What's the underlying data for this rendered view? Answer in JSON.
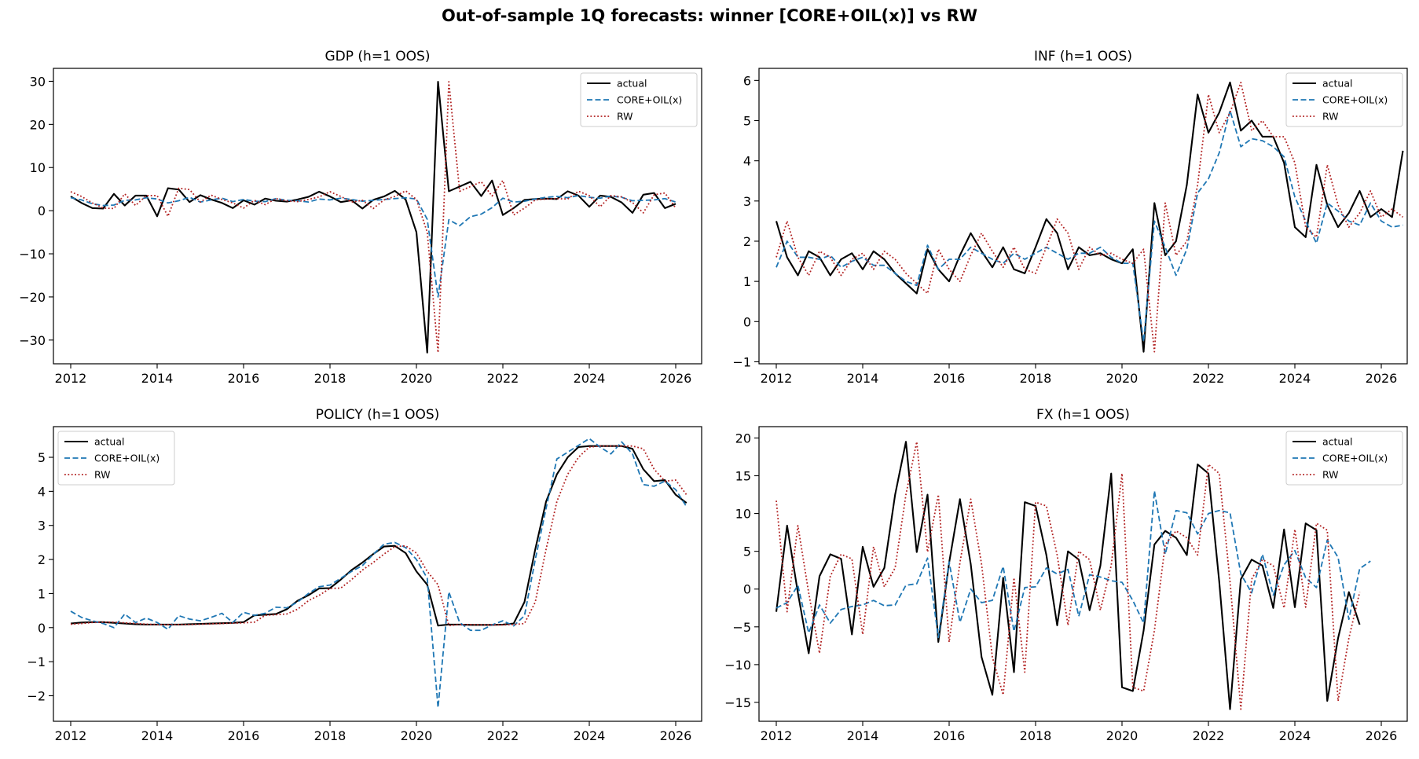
{
  "suptitle": "Out-of-sample 1Q forecasts: winner [CORE+OIL(x)] vs RW",
  "colors": {
    "actual": "#000000",
    "model": "#1f77b4",
    "rw": "#b22222"
  },
  "chart_data": [
    {
      "type": "line",
      "title": "GDP  (h=1 OOS)",
      "xlabel": "",
      "ylabel": "",
      "xlim": [
        2011.6,
        2026.6
      ],
      "ylim": [
        -35.5,
        33
      ],
      "xticks": [
        2012,
        2014,
        2016,
        2018,
        2020,
        2022,
        2024,
        2026
      ],
      "yticks": [
        -30,
        -20,
        -10,
        0,
        10,
        20,
        30
      ],
      "legend_position": "top-right",
      "grid": false,
      "x_start": 2012.0,
      "x_step": 0.25,
      "series": [
        {
          "name": "actual",
          "style": "solid",
          "color": "#000000",
          "values": [
            3.3,
            1.8,
            0.6,
            0.5,
            3.9,
            1.2,
            3.5,
            3.5,
            -1.3,
            5.2,
            4.9,
            2.0,
            3.6,
            2.6,
            1.8,
            0.6,
            2.4,
            1.4,
            2.8,
            2.3,
            2.1,
            2.6,
            3.2,
            4.4,
            3.3,
            2.0,
            2.4,
            0.5,
            2.5,
            3.3,
            4.6,
            2.6,
            -5.0,
            -32.9,
            29.9,
            4.5,
            5.6,
            6.7,
            3.4,
            7.0,
            -1.0,
            0.6,
            2.5,
            2.7,
            2.8,
            2.7,
            4.5,
            3.5,
            0.9,
            3.5,
            3.2,
            1.9,
            -0.5,
            3.7,
            4.1,
            0.6,
            1.6
          ]
        },
        {
          "name": "CORE+OIL(x)",
          "style": "dashed",
          "color": "#1f77b4",
          "values": [
            3.0,
            2.5,
            1.6,
            1.2,
            1.3,
            2.4,
            2.5,
            3.0,
            2.7,
            1.8,
            2.3,
            3.1,
            2.0,
            2.5,
            2.9,
            2.1,
            2.6,
            2.2,
            2.1,
            2.8,
            2.4,
            2.3,
            2.0,
            2.7,
            2.5,
            2.9,
            2.6,
            2.2,
            2.4,
            2.6,
            2.8,
            3.0,
            2.7,
            -2.0,
            -20.0,
            -2.1,
            -3.5,
            -1.4,
            -0.8,
            0.7,
            2.9,
            2.0,
            2.2,
            2.7,
            3.1,
            3.3,
            3.0,
            3.5,
            3.1,
            2.9,
            3.4,
            3.1,
            2.3,
            2.4,
            2.5,
            2.8,
            2.0
          ]
        },
        {
          "name": "RW",
          "style": "dotted",
          "color": "#b22222",
          "values": [
            4.4,
            3.3,
            1.8,
            0.6,
            0.5,
            3.9,
            1.2,
            3.5,
            3.5,
            -1.3,
            5.2,
            4.9,
            2.0,
            3.6,
            2.6,
            1.8,
            0.6,
            2.4,
            1.4,
            2.8,
            2.3,
            2.1,
            2.6,
            3.2,
            4.4,
            3.3,
            2.0,
            2.4,
            0.5,
            2.5,
            3.3,
            4.6,
            2.6,
            -5.0,
            -32.9,
            29.9,
            4.5,
            5.6,
            6.7,
            3.4,
            7.0,
            -1.0,
            0.6,
            2.5,
            2.7,
            2.8,
            2.7,
            4.5,
            3.5,
            0.9,
            3.5,
            3.2,
            1.9,
            -0.5,
            3.7,
            4.1,
            0.6
          ]
        }
      ]
    },
    {
      "type": "line",
      "title": "INF  (h=1 OOS)",
      "xlabel": "",
      "ylabel": "",
      "xlim": [
        2011.6,
        2026.6
      ],
      "ylim": [
        -1.05,
        6.3
      ],
      "xticks": [
        2012,
        2014,
        2016,
        2018,
        2020,
        2022,
        2024,
        2026
      ],
      "yticks": [
        -1,
        0,
        1,
        2,
        3,
        4,
        5,
        6
      ],
      "legend_position": "top-right",
      "grid": false,
      "x_start": 2012.0,
      "x_step": 0.25,
      "series": [
        {
          "name": "actual",
          "style": "solid",
          "color": "#000000",
          "values": [
            2.5,
            1.6,
            1.15,
            1.75,
            1.6,
            1.15,
            1.55,
            1.7,
            1.3,
            1.75,
            1.55,
            1.2,
            0.95,
            0.7,
            1.8,
            1.3,
            1.0,
            1.65,
            2.2,
            1.75,
            1.35,
            1.85,
            1.3,
            1.2,
            1.85,
            2.55,
            2.2,
            1.3,
            1.85,
            1.65,
            1.7,
            1.55,
            1.45,
            1.8,
            -0.75,
            2.95,
            1.65,
            2.0,
            3.4,
            5.65,
            4.7,
            5.2,
            5.95,
            4.75,
            5.0,
            4.6,
            4.6,
            3.95,
            2.35,
            2.1,
            3.9,
            2.9,
            2.35,
            2.7,
            3.25,
            2.6,
            2.8,
            2.6,
            4.25
          ]
        },
        {
          "name": "CORE+OIL(x)",
          "style": "dashed",
          "color": "#1f77b4",
          "values": [
            1.35,
            2.0,
            1.6,
            1.6,
            1.55,
            1.65,
            1.35,
            1.5,
            1.6,
            1.4,
            1.4,
            1.2,
            1.0,
            0.9,
            1.9,
            1.3,
            1.55,
            1.55,
            1.85,
            1.7,
            1.55,
            1.45,
            1.7,
            1.55,
            1.7,
            1.85,
            1.7,
            1.55,
            1.7,
            1.7,
            1.85,
            1.6,
            1.45,
            1.45,
            -0.5,
            2.5,
            1.85,
            1.15,
            1.8,
            3.2,
            3.55,
            4.2,
            5.25,
            4.35,
            4.55,
            4.5,
            4.35,
            4.1,
            3.1,
            2.5,
            1.95,
            2.95,
            2.75,
            2.5,
            2.4,
            2.95,
            2.5,
            2.35,
            2.4
          ]
        },
        {
          "name": "RW",
          "style": "dotted",
          "color": "#b22222",
          "values": [
            1.6,
            2.5,
            1.6,
            1.15,
            1.75,
            1.6,
            1.15,
            1.55,
            1.7,
            1.3,
            1.75,
            1.55,
            1.2,
            0.95,
            0.7,
            1.8,
            1.3,
            1.0,
            1.65,
            2.2,
            1.75,
            1.35,
            1.85,
            1.3,
            1.2,
            1.85,
            2.55,
            2.2,
            1.3,
            1.85,
            1.65,
            1.7,
            1.55,
            1.45,
            1.8,
            -0.75,
            2.95,
            1.65,
            2.0,
            3.4,
            5.65,
            4.7,
            5.2,
            5.95,
            4.75,
            5.0,
            4.6,
            4.6,
            3.95,
            2.35,
            2.1,
            3.9,
            2.9,
            2.35,
            2.7,
            3.25,
            2.6,
            2.8,
            2.6
          ]
        }
      ]
    },
    {
      "type": "line",
      "title": "POLICY  (h=1 OOS)",
      "xlabel": "",
      "ylabel": "",
      "xlim": [
        2011.6,
        2026.6
      ],
      "ylim": [
        -2.75,
        5.9
      ],
      "xticks": [
        2012,
        2014,
        2016,
        2018,
        2020,
        2022,
        2024,
        2026
      ],
      "yticks": [
        -2,
        -1,
        0,
        1,
        2,
        3,
        4,
        5
      ],
      "legend_position": "top-left",
      "grid": false,
      "x_start": 2012.0,
      "x_step": 0.25,
      "series": [
        {
          "name": "actual",
          "style": "solid",
          "color": "#000000",
          "values": [
            0.12,
            0.15,
            0.16,
            0.16,
            0.14,
            0.12,
            0.1,
            0.09,
            0.09,
            0.09,
            0.09,
            0.1,
            0.11,
            0.12,
            0.13,
            0.14,
            0.16,
            0.36,
            0.38,
            0.4,
            0.54,
            0.79,
            0.95,
            1.15,
            1.16,
            1.41,
            1.69,
            1.91,
            2.16,
            2.38,
            2.4,
            2.19,
            1.65,
            1.26,
            0.06,
            0.09,
            0.09,
            0.08,
            0.08,
            0.08,
            0.09,
            0.12,
            0.75,
            2.3,
            3.7,
            4.5,
            5.0,
            5.3,
            5.33,
            5.33,
            5.33,
            5.33,
            5.25,
            4.65,
            4.3,
            4.33,
            3.9,
            3.66
          ]
        },
        {
          "name": "CORE+OIL(x)",
          "style": "dashed",
          "color": "#1f77b4",
          "values": [
            0.48,
            0.3,
            0.2,
            0.12,
            0.0,
            0.4,
            0.15,
            0.28,
            0.15,
            -0.05,
            0.35,
            0.25,
            0.2,
            0.3,
            0.42,
            0.15,
            0.45,
            0.36,
            0.42,
            0.6,
            0.58,
            0.75,
            1.0,
            1.2,
            1.25,
            1.45,
            1.65,
            1.82,
            2.15,
            2.45,
            2.5,
            2.35,
            2.0,
            1.45,
            -2.35,
            1.05,
            0.15,
            -0.08,
            -0.08,
            0.08,
            0.2,
            0.05,
            0.35,
            2.0,
            3.5,
            4.95,
            5.15,
            5.35,
            5.55,
            5.3,
            5.1,
            5.45,
            5.1,
            4.2,
            4.15,
            4.3,
            4.05,
            3.55
          ]
        },
        {
          "name": "RW",
          "style": "dotted",
          "color": "#b22222",
          "values": [
            0.1,
            0.12,
            0.15,
            0.16,
            0.16,
            0.14,
            0.12,
            0.1,
            0.09,
            0.09,
            0.09,
            0.09,
            0.1,
            0.11,
            0.12,
            0.13,
            0.14,
            0.16,
            0.36,
            0.38,
            0.4,
            0.54,
            0.79,
            0.95,
            1.15,
            1.16,
            1.41,
            1.69,
            1.91,
            2.16,
            2.38,
            2.4,
            2.19,
            1.65,
            1.26,
            0.06,
            0.09,
            0.09,
            0.08,
            0.08,
            0.08,
            0.09,
            0.12,
            0.75,
            2.3,
            3.7,
            4.5,
            5.0,
            5.3,
            5.33,
            5.33,
            5.33,
            5.33,
            5.25,
            4.65,
            4.3,
            4.33,
            3.9
          ]
        }
      ]
    },
    {
      "type": "line",
      "title": "FX  (h=1 OOS)",
      "xlabel": "",
      "ylabel": "",
      "xlim": [
        2011.6,
        2026.6
      ],
      "ylim": [
        -17.5,
        21.5
      ],
      "xticks": [
        2012,
        2014,
        2016,
        2018,
        2020,
        2022,
        2024,
        2026
      ],
      "yticks": [
        -15,
        -10,
        -5,
        0,
        5,
        10,
        15,
        20
      ],
      "legend_position": "top-right",
      "grid": false,
      "x_start": 2012.0,
      "x_step": 0.25,
      "series": [
        {
          "name": "actual",
          "style": "solid",
          "color": "#000000",
          "values": [
            -3.0,
            8.4,
            -0.5,
            -8.5,
            1.7,
            4.6,
            4.0,
            -6.0,
            5.6,
            0.3,
            2.8,
            12.5,
            19.5,
            4.9,
            12.5,
            -7.0,
            3.5,
            11.9,
            3.3,
            -9.0,
            -14.0,
            1.5,
            -11.0,
            11.5,
            11.0,
            4.5,
            -4.8,
            5.0,
            3.9,
            -2.8,
            3.1,
            15.3,
            -13.0,
            -13.5,
            -5.5,
            5.9,
            7.7,
            6.8,
            4.5,
            16.5,
            15.3,
            1.0,
            -15.9,
            1.3,
            3.9,
            3.1,
            -2.5,
            7.9,
            -2.4,
            8.7,
            7.8,
            -14.8,
            -6.5,
            -0.4,
            -4.7
          ]
        },
        {
          "name": "CORE+OIL(x)",
          "style": "dashed",
          "color": "#1f77b4",
          "values": [
            -2.5,
            -1.8,
            0.5,
            -5.8,
            -2.1,
            -4.5,
            -2.7,
            -2.3,
            -2.1,
            -1.5,
            -2.2,
            -2.1,
            0.5,
            0.7,
            4.1,
            -6.4,
            3.6,
            -4.4,
            0.0,
            -1.8,
            -1.5,
            3.0,
            -5.6,
            0.2,
            0.3,
            2.8,
            2.0,
            2.6,
            -3.6,
            1.9,
            1.6,
            1.1,
            0.9,
            -1.5,
            -4.5,
            13.0,
            4.6,
            10.4,
            10.1,
            7.3,
            10.0,
            10.4,
            10.1,
            2.0,
            -0.5,
            4.6,
            -0.8,
            3.2,
            5.1,
            1.5,
            0.2,
            6.5,
            4.2,
            -4.0,
            2.7,
            3.7
          ]
        },
        {
          "name": "RW",
          "style": "dotted",
          "color": "#b22222",
          "values": [
            11.7,
            -3.0,
            8.4,
            -0.5,
            -8.5,
            1.7,
            4.6,
            4.0,
            -6.0,
            5.6,
            0.3,
            2.8,
            12.5,
            19.5,
            4.9,
            12.5,
            -7.0,
            3.5,
            11.9,
            3.3,
            -9.0,
            -14.0,
            1.5,
            -11.0,
            11.5,
            11.0,
            4.5,
            -4.8,
            5.0,
            3.9,
            -2.8,
            3.1,
            15.3,
            -13.0,
            -13.5,
            -5.5,
            5.9,
            7.7,
            6.8,
            4.5,
            16.5,
            15.3,
            1.0,
            -15.9,
            1.3,
            3.9,
            3.1,
            -2.5,
            7.9,
            -2.4,
            8.7,
            7.8,
            -14.8,
            -6.5,
            -0.4
          ]
        }
      ]
    }
  ]
}
